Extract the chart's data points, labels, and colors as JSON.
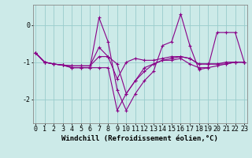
{
  "xlabel": "Windchill (Refroidissement éolien,°C)",
  "bg_color": "#cceae8",
  "line_color": "#880088",
  "grid_color": "#99cccc",
  "x": [
    0,
    1,
    2,
    3,
    4,
    5,
    6,
    7,
    8,
    9,
    10,
    11,
    12,
    13,
    14,
    15,
    16,
    17,
    18,
    19,
    20,
    21,
    22,
    23
  ],
  "series1": [
    -0.75,
    -1.0,
    -1.05,
    -1.08,
    -1.1,
    -1.1,
    -1.1,
    -0.6,
    -0.85,
    -1.45,
    -1.0,
    -0.9,
    -0.95,
    -0.95,
    -0.9,
    -0.85,
    -0.85,
    -0.9,
    -1.05,
    -1.05,
    -1.05,
    -1.05,
    -1.0,
    -1.0
  ],
  "series2": [
    -0.75,
    -1.0,
    -1.05,
    -1.08,
    -1.1,
    -1.1,
    -1.1,
    -0.85,
    -0.85,
    -1.05,
    -1.85,
    -1.5,
    -1.15,
    -1.05,
    -0.95,
    -0.9,
    -0.85,
    -0.9,
    -1.05,
    -1.05,
    -1.05,
    -1.0,
    -1.0,
    -1.0
  ],
  "series3": [
    -0.75,
    -1.0,
    -1.05,
    -1.08,
    -1.15,
    -1.15,
    -1.15,
    -1.15,
    -1.15,
    -2.3,
    -1.85,
    -1.5,
    -1.25,
    -1.05,
    -0.95,
    -0.95,
    -0.9,
    -1.05,
    -1.15,
    -1.15,
    -1.1,
    -1.05,
    -1.0,
    -1.0
  ],
  "series4": [
    -0.75,
    -1.0,
    -1.05,
    -1.08,
    -1.15,
    -1.15,
    -1.15,
    0.2,
    -0.45,
    -1.75,
    -2.3,
    -1.85,
    -1.5,
    -1.25,
    -0.55,
    -0.45,
    0.3,
    -0.55,
    -1.2,
    -1.15,
    -0.2,
    -0.2,
    -0.2,
    -1.0
  ],
  "ylim": [
    -2.65,
    0.55
  ],
  "xlim": [
    -0.3,
    23.3
  ],
  "yticks": [
    -2,
    -1,
    0
  ],
  "xticks": [
    0,
    1,
    2,
    3,
    4,
    5,
    6,
    7,
    8,
    9,
    10,
    11,
    12,
    13,
    14,
    15,
    16,
    17,
    18,
    19,
    20,
    21,
    22,
    23
  ],
  "xlabel_fontsize": 6.5,
  "tick_fontsize": 6,
  "linewidth": 0.8,
  "markersize": 2.5
}
